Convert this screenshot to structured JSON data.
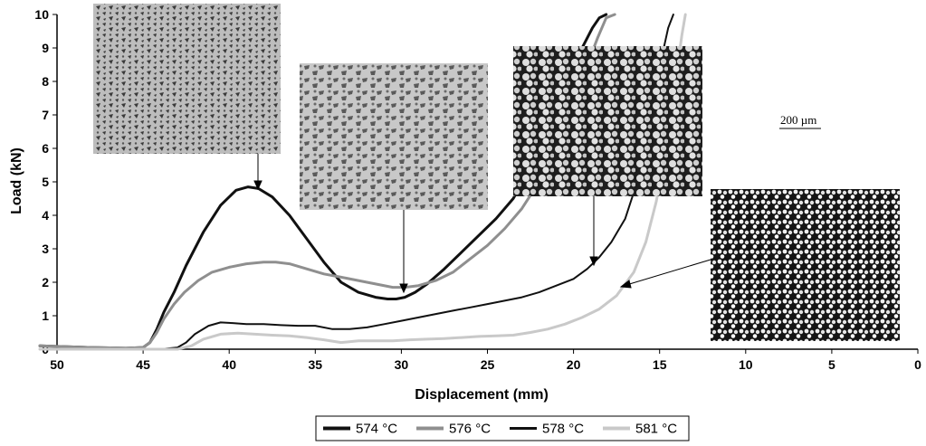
{
  "chart_data": {
    "type": "line",
    "xlabel": "Displacement (mm)",
    "ylabel": "Load (kN)",
    "xlim": [
      50,
      0
    ],
    "ylim": [
      0,
      10
    ],
    "x_reversed": true,
    "x_ticks": [
      50,
      45,
      40,
      35,
      30,
      25,
      20,
      15,
      10,
      5,
      0
    ],
    "y_ticks": [
      0,
      1,
      2,
      3,
      4,
      5,
      6,
      7,
      8,
      9,
      10
    ],
    "grid": false,
    "legend_position": "bottom",
    "scale_bar_label": "200 µm",
    "series": [
      {
        "name": "574 °C",
        "color": "#111111",
        "stroke": 3,
        "x": [
          51,
          48,
          46,
          45,
          44.6,
          44.2,
          43.8,
          43.2,
          42.5,
          41.5,
          40.5,
          39.6,
          38.9,
          38.3,
          37.5,
          36.5,
          35.5,
          34.5,
          33.5,
          32.5,
          31.5,
          30.8,
          30.3,
          29.8,
          29.2,
          28.5,
          27.5,
          26.5,
          25.5,
          24.5,
          23.5,
          22.5,
          21.5,
          20.5,
          19.8,
          19.3,
          18.9,
          18.5,
          18.1
        ],
        "y": [
          0.1,
          0.05,
          0.03,
          0.05,
          0.2,
          0.6,
          1.1,
          1.7,
          2.5,
          3.5,
          4.3,
          4.75,
          4.85,
          4.8,
          4.55,
          4.0,
          3.3,
          2.6,
          2.0,
          1.7,
          1.55,
          1.5,
          1.5,
          1.55,
          1.7,
          1.95,
          2.4,
          2.9,
          3.4,
          3.9,
          4.5,
          5.4,
          6.5,
          7.8,
          8.7,
          9.2,
          9.6,
          9.9,
          10.2
        ]
      },
      {
        "name": "576 °C",
        "color": "#8f8f8f",
        "stroke": 3,
        "x": [
          51,
          48,
          46,
          45,
          44.6,
          44.2,
          43.8,
          43.2,
          42.6,
          41.8,
          41.0,
          40.0,
          39.0,
          38.0,
          37.3,
          36.5,
          35.5,
          34.5,
          33.5,
          32.5,
          31.5,
          30.5,
          29.8,
          29.0,
          28.0,
          27.0,
          26.0,
          25.0,
          24.0,
          23.0,
          22.0,
          21.0,
          20.0,
          19.2,
          18.6,
          18.1,
          17.6
        ],
        "y": [
          0.1,
          0.05,
          0.03,
          0.05,
          0.2,
          0.5,
          0.9,
          1.35,
          1.7,
          2.05,
          2.3,
          2.45,
          2.55,
          2.6,
          2.6,
          2.55,
          2.4,
          2.25,
          2.15,
          2.05,
          1.95,
          1.85,
          1.85,
          1.9,
          2.05,
          2.3,
          2.7,
          3.1,
          3.6,
          4.2,
          5.0,
          6.1,
          7.4,
          8.5,
          9.3,
          9.9,
          10.2
        ]
      },
      {
        "name": "578 °C",
        "color": "#111111",
        "stroke": 2,
        "x": [
          51,
          48,
          46,
          45,
          44,
          43,
          42.5,
          42,
          41.2,
          40.5,
          39.8,
          39,
          38,
          37,
          36,
          35,
          34,
          33,
          32,
          31,
          30,
          29,
          28,
          27,
          26,
          25,
          24,
          23,
          22,
          21,
          20,
          19.2,
          18.5,
          17.8,
          17,
          16.3,
          15.7,
          15.2,
          14.8,
          14.5,
          14.2
        ],
        "y": [
          0,
          0,
          0,
          0,
          0,
          0.05,
          0.2,
          0.45,
          0.7,
          0.8,
          0.78,
          0.75,
          0.75,
          0.72,
          0.7,
          0.7,
          0.6,
          0.6,
          0.65,
          0.75,
          0.85,
          0.95,
          1.05,
          1.15,
          1.25,
          1.35,
          1.45,
          1.55,
          1.7,
          1.9,
          2.1,
          2.4,
          2.75,
          3.2,
          3.9,
          5.0,
          6.4,
          7.8,
          8.9,
          9.6,
          10.2
        ]
      },
      {
        "name": "581 °C",
        "color": "#c9c9c9",
        "stroke": 3,
        "x": [
          51,
          48,
          45,
          43,
          42.2,
          41.5,
          40.5,
          39.5,
          38.5,
          37.5,
          36.5,
          35.5,
          34.5,
          33.5,
          32.5,
          31.5,
          30.5,
          29.5,
          28.5,
          27.5,
          26.5,
          25.5,
          24.5,
          23.5,
          22.5,
          21.5,
          20.5,
          19.5,
          18.5,
          17.5,
          16.5,
          15.8,
          15.2,
          14.7,
          14.3,
          14.0,
          13.7,
          13.5
        ],
        "y": [
          0,
          0,
          0,
          0,
          0.1,
          0.3,
          0.45,
          0.48,
          0.45,
          0.42,
          0.4,
          0.35,
          0.28,
          0.2,
          0.25,
          0.25,
          0.25,
          0.28,
          0.3,
          0.32,
          0.35,
          0.38,
          0.4,
          0.42,
          0.5,
          0.6,
          0.75,
          0.95,
          1.2,
          1.6,
          2.3,
          3.2,
          4.4,
          5.7,
          7.1,
          8.3,
          9.4,
          10.2
        ]
      }
    ]
  }
}
